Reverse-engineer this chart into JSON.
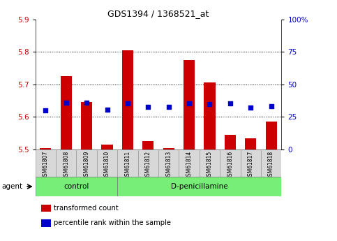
{
  "title": "GDS1394 / 1368521_at",
  "samples": [
    "GSM61807",
    "GSM61808",
    "GSM61809",
    "GSM61810",
    "GSM61811",
    "GSM61812",
    "GSM61813",
    "GSM61814",
    "GSM61815",
    "GSM61816",
    "GSM61817",
    "GSM61818"
  ],
  "transformed_count": [
    5.505,
    5.725,
    5.645,
    5.515,
    5.805,
    5.525,
    5.505,
    5.775,
    5.705,
    5.545,
    5.535,
    5.585
  ],
  "percentile_rank": [
    5.62,
    5.643,
    5.643,
    5.622,
    5.642,
    5.63,
    5.63,
    5.642,
    5.64,
    5.642,
    5.628,
    5.632
  ],
  "bar_bottom": 5.5,
  "ylim_left": [
    5.5,
    5.9
  ],
  "ylim_right": [
    0,
    100
  ],
  "yticks_left": [
    5.5,
    5.6,
    5.7,
    5.8,
    5.9
  ],
  "yticks_right": [
    0,
    25,
    50,
    75,
    100
  ],
  "ytick_labels_right": [
    "0",
    "25",
    "50",
    "75",
    "100%"
  ],
  "grid_yticks": [
    5.6,
    5.7,
    5.8
  ],
  "bar_color": "#cc0000",
  "dot_color": "#0000cc",
  "bg_xticklabels": "#d8d8d8",
  "group_color": "#77ee77",
  "agent_label": "agent",
  "legend_items": [
    {
      "color": "#cc0000",
      "label": "transformed count"
    },
    {
      "color": "#0000cc",
      "label": "percentile rank within the sample"
    }
  ],
  "ctrl_count": 4,
  "dpen_count": 8
}
